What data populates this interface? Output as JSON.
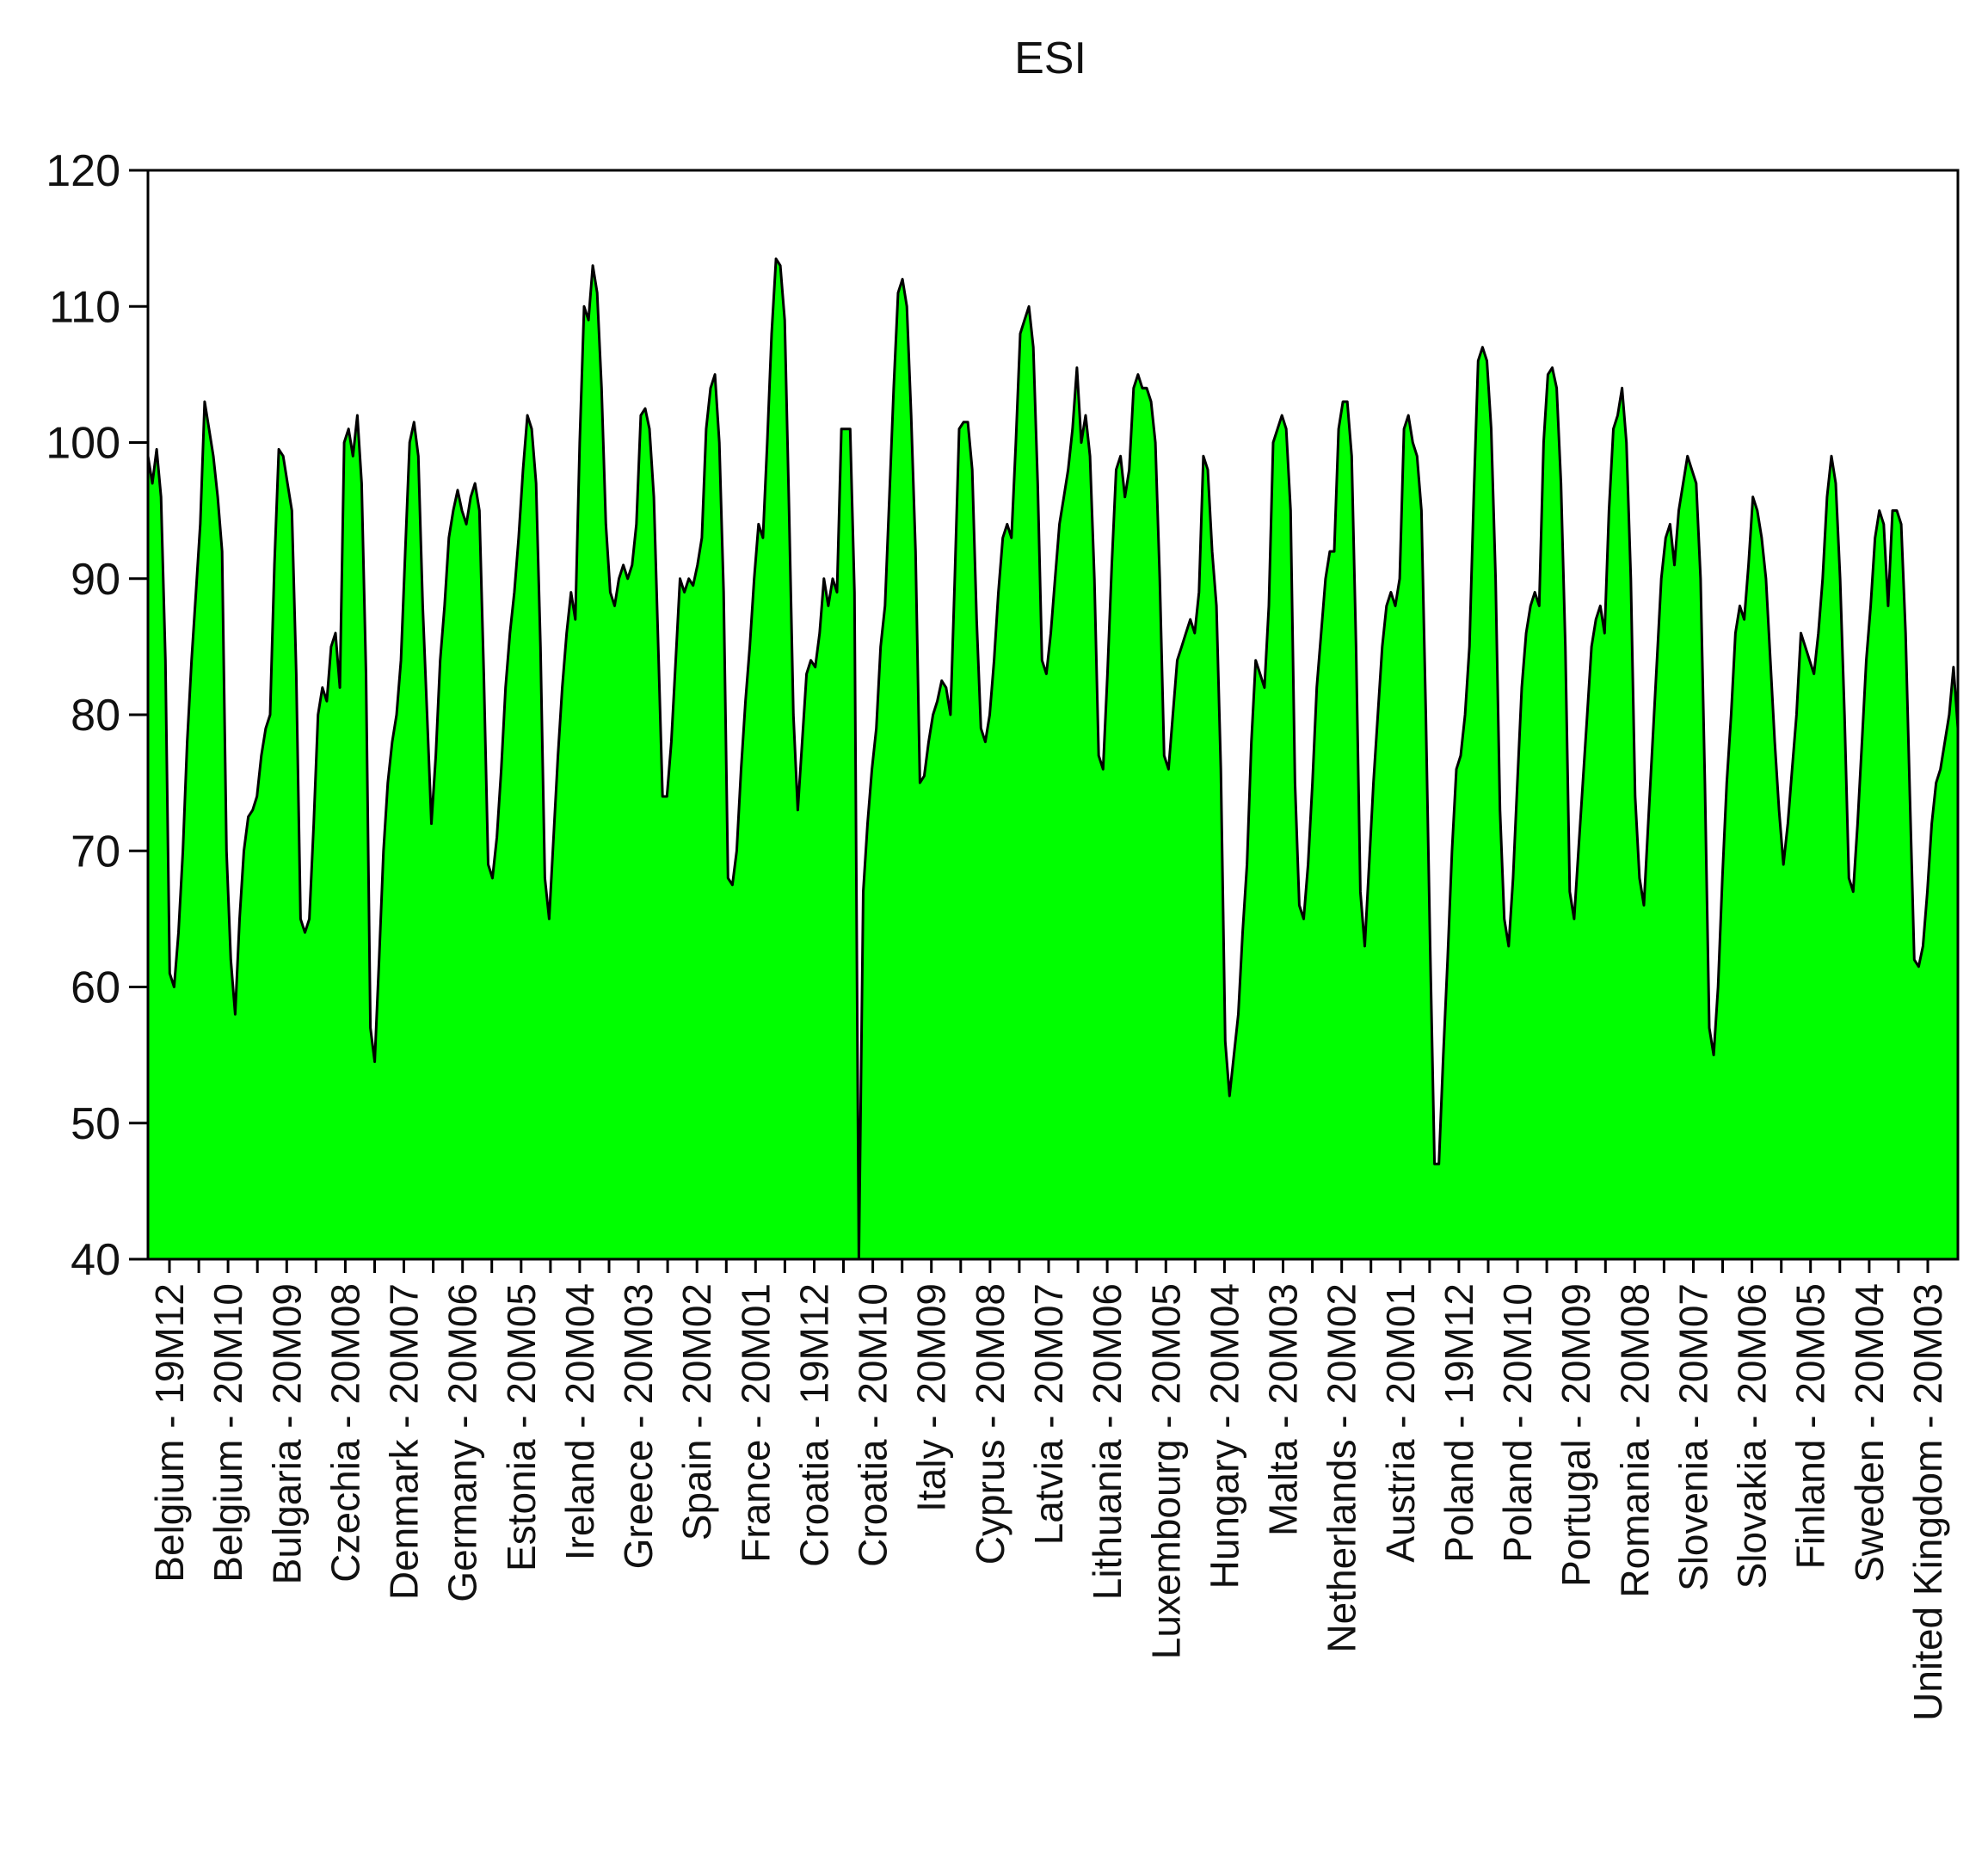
{
  "chart_data": {
    "type": "area",
    "title": "ESI",
    "xlabel": "",
    "ylabel": "",
    "ylim": [
      40,
      120
    ],
    "yticks": [
      40,
      50,
      60,
      70,
      80,
      90,
      100,
      110,
      120
    ],
    "grid": false,
    "legend": "none",
    "colors": {
      "fill": "#00ff00",
      "line": "#000000",
      "frame": "#000000",
      "background": "#ffffff"
    },
    "xtick_labels": [
      "Belgium - 19M12",
      "Belgium - 20M10",
      "Bulgaria - 20M09",
      "Czechia - 20M08",
      "Denmark - 20M07",
      "Germany - 20M06",
      "Estonia - 20M05",
      "Ireland - 20M04",
      "Greece - 20M03",
      "Spain - 20M02",
      "France - 20M01",
      "Croatia - 19M12",
      "Croatia - 20M10",
      "Italy - 20M09",
      "Cyprus - 20M08",
      "Latvia - 20M07",
      "Lithuania - 20M06",
      "Luxembourg - 20M05",
      "Hungary - 20M04",
      "Malta - 20M03",
      "Netherlands - 20M02",
      "Austria - 20M01",
      "Poland - 19M12",
      "Poland - 20M10",
      "Portugal - 20M09",
      "Romania - 20M08",
      "Slovenia - 20M07",
      "Slovakia - 20M06",
      "Finland - 20M05",
      "Sweden - 20M04",
      "United Kingdom - 20M03"
    ],
    "series": [
      {
        "values": [
          99,
          97,
          99.5,
          96,
          84,
          61,
          60,
          64,
          70,
          78,
          84,
          89,
          94,
          103,
          101,
          99,
          96,
          92,
          70,
          62,
          58,
          65,
          70,
          72.5,
          73,
          74,
          77,
          79,
          80,
          91,
          99.5,
          99,
          97,
          95,
          83,
          65,
          64,
          65,
          72,
          80,
          82,
          81,
          85,
          86,
          82,
          100,
          101,
          99,
          102,
          97,
          83,
          57,
          54.5,
          62,
          70,
          75,
          78,
          80,
          84,
          92,
          100,
          101.5,
          99,
          88,
          80,
          72,
          77,
          84,
          88,
          93,
          95,
          96.5,
          95,
          94,
          96,
          97,
          95,
          83,
          69,
          68,
          71,
          76,
          82,
          86,
          89,
          93,
          98,
          102,
          101,
          97,
          85,
          68,
          65,
          71,
          77,
          82,
          86,
          89,
          87,
          100,
          110,
          109,
          113,
          111,
          104,
          94,
          89,
          88,
          90,
          91,
          90,
          91,
          94,
          102,
          102.5,
          101,
          96,
          85,
          74,
          74,
          78,
          84,
          90,
          89,
          90,
          89.5,
          91,
          93,
          101,
          104,
          105,
          100,
          89,
          68,
          67.5,
          70,
          76,
          81,
          85,
          90,
          94,
          93,
          100,
          108,
          113.5,
          113,
          109,
          95,
          80,
          73,
          78,
          83,
          84,
          83.5,
          86,
          90,
          88,
          90,
          89,
          101,
          101,
          101,
          89,
          40,
          67,
          72,
          76,
          79,
          85,
          88,
          96,
          104,
          111,
          112,
          110,
          102,
          92,
          75,
          75.5,
          78,
          80,
          81,
          82.5,
          82,
          80,
          90,
          101,
          101.5,
          101.5,
          98,
          87,
          79,
          78,
          80,
          84,
          89,
          93,
          94,
          93,
          100,
          108,
          109,
          110,
          107,
          97,
          84,
          83,
          86,
          90,
          94,
          96,
          98,
          101,
          105.5,
          100,
          102,
          99,
          90,
          77,
          76,
          83,
          91,
          98,
          99,
          96,
          98,
          104,
          105,
          104,
          104,
          103,
          100,
          90,
          77,
          76,
          80,
          84,
          85,
          86,
          87,
          86,
          89,
          99,
          98,
          92,
          88,
          76,
          56,
          52,
          55,
          58,
          64,
          69,
          78,
          84,
          83,
          82,
          88,
          100,
          101,
          102,
          101,
          95,
          75,
          66,
          65,
          69,
          75,
          82,
          86,
          90,
          92,
          92,
          101,
          103,
          103,
          99,
          85,
          67,
          63,
          69,
          75,
          80,
          85,
          88,
          89,
          88,
          90,
          101,
          102,
          100,
          99,
          95,
          80,
          63,
          47,
          47,
          55,
          62,
          70,
          76,
          77,
          80,
          85,
          96,
          106,
          107,
          106,
          101,
          90,
          73,
          65,
          63,
          68,
          75,
          82,
          86,
          88,
          89,
          88,
          100,
          105,
          105.5,
          104,
          97,
          85,
          67,
          65,
          70,
          75,
          80,
          85,
          87,
          88,
          86,
          95,
          101,
          102,
          104,
          100,
          90,
          74,
          68,
          66,
          72,
          78,
          84,
          90,
          93,
          94,
          91,
          95,
          97,
          99,
          98,
          97,
          90,
          75,
          57,
          55,
          60,
          68,
          75,
          80,
          86,
          88,
          87,
          91,
          96,
          95,
          93,
          90,
          84,
          78,
          73,
          69,
          72,
          76,
          80,
          86,
          85,
          84,
          83,
          86,
          90,
          96,
          99,
          97,
          90,
          80,
          68,
          67,
          72,
          78,
          84,
          88,
          93,
          95,
          94,
          88,
          95,
          95,
          94,
          86,
          74,
          62,
          61.5,
          63,
          67,
          72,
          75,
          76,
          78,
          80,
          83.5,
          79
        ]
      }
    ]
  }
}
